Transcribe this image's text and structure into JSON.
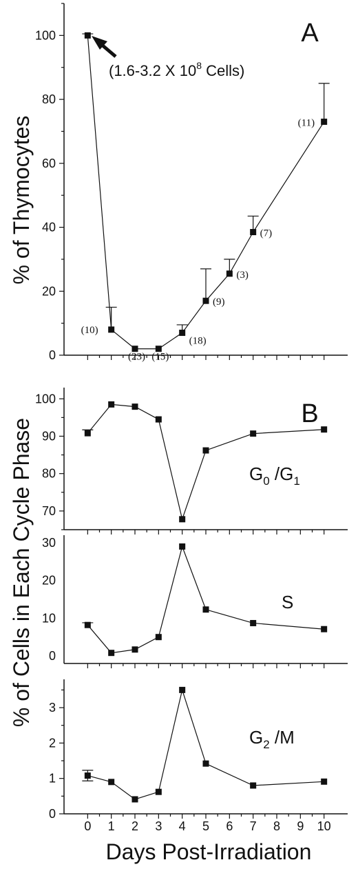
{
  "colors": {
    "ink": "#111111",
    "background": "#ffffff"
  },
  "x_tick_labels": [
    "0",
    "1",
    "2",
    "3",
    "4",
    "5",
    "6",
    "7",
    "8",
    "9",
    "10"
  ],
  "xlabel": "Days Post-Irradiation",
  "ylabel_b": "% of Cells in Each Cycle Phase",
  "chart_data": [
    {
      "type": "line",
      "panel": "A",
      "ylabel": "% of Thymocytes",
      "ylim": [
        0,
        110
      ],
      "yticks": [
        0,
        20,
        40,
        60,
        80,
        100
      ],
      "xlim": [
        -1,
        11
      ],
      "x": [
        0,
        1,
        2,
        3,
        4,
        5,
        6,
        7,
        10
      ],
      "values": [
        100,
        8,
        2,
        2,
        7,
        17,
        25.5,
        38.5,
        73
      ],
      "error_upper": [
        100.5,
        15,
        null,
        null,
        9.5,
        27,
        30,
        43.5,
        85
      ],
      "n_labels": [
        "",
        "(10)",
        "(23)",
        "(15)",
        "(18)",
        "(9)",
        "(3)",
        "(7)",
        "(11)"
      ],
      "annotation": {
        "prefix": "(1.6-3.2 X 10",
        "sup": "8",
        "suffix": " Cells)"
      }
    },
    {
      "type": "line",
      "panel": "B",
      "series_label": {
        "main": "G",
        "sub1": "0",
        "sep": " /G",
        "sub2": "1"
      },
      "ylim": [
        65,
        103
      ],
      "yticks": [
        70,
        80,
        90,
        100
      ],
      "xlim": [
        -1,
        11
      ],
      "x": [
        0,
        1,
        2,
        3,
        4,
        5,
        7,
        10
      ],
      "values": [
        90.8,
        98.5,
        97.9,
        94.5,
        67.8,
        86.2,
        90.7,
        91.8
      ],
      "error_upper": [
        91.7,
        null,
        null,
        null,
        null,
        null,
        null,
        null
      ]
    },
    {
      "type": "line",
      "panel": "B",
      "series_label": {
        "main": "S"
      },
      "ylim": [
        -2,
        32
      ],
      "yticks": [
        0,
        10,
        20,
        30
      ],
      "xlim": [
        -1,
        11
      ],
      "x": [
        0,
        1,
        2,
        3,
        4,
        5,
        7,
        10
      ],
      "values": [
        8.2,
        0.8,
        1.7,
        5,
        29,
        12.3,
        8.7,
        7.1
      ],
      "error_upper": [
        8.8,
        null,
        null,
        null,
        null,
        null,
        null,
        null
      ]
    },
    {
      "type": "line",
      "panel": "B",
      "series_label": {
        "main": "G",
        "sub1": "2",
        "sep": " /M"
      },
      "ylim": [
        0,
        3.8
      ],
      "yticks": [
        0,
        1,
        2,
        3
      ],
      "xlim": [
        -1,
        11
      ],
      "x": [
        0,
        1,
        2,
        3,
        4,
        5,
        7,
        10
      ],
      "values": [
        1.08,
        0.9,
        0.41,
        0.62,
        3.5,
        1.42,
        0.8,
        0.91
      ],
      "error_upper": [
        1.23,
        null,
        null,
        null,
        null,
        null,
        null,
        null
      ],
      "error_lower": [
        0.93,
        null,
        null,
        null,
        null,
        null,
        null,
        null
      ]
    }
  ]
}
